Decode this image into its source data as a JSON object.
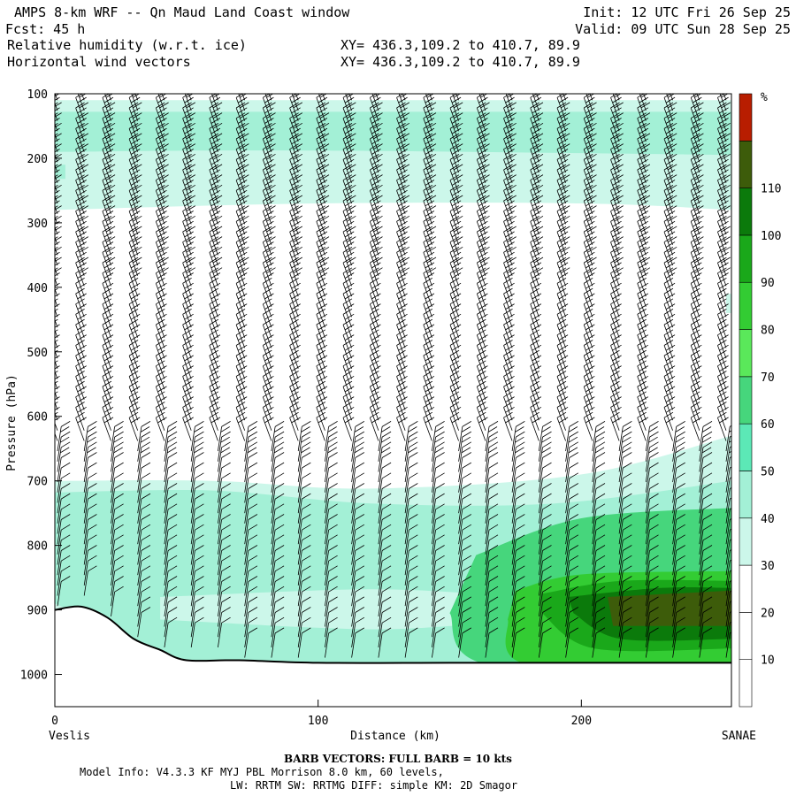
{
  "header": {
    "title": "AMPS 8-km WRF -- Qn Maud Land Coast window",
    "forecast": "Fcst: 45 h",
    "field1": "Relative humidity (w.r.t. ice)",
    "field2": "Horizontal wind vectors",
    "xy1": "XY= 436.3,109.2 to 410.7, 89.9",
    "xy2": "XY= 436.3,109.2 to 410.7, 89.9",
    "init": "Init: 12 UTC Fri 26 Sep 25",
    "valid": "Valid: 09 UTC Sun 28 Sep 25"
  },
  "chart_data": {
    "type": "heatmap",
    "subtype": "vertical cross-section, filled contours of relative humidity with wind barbs",
    "xlabel": "Distance (km)",
    "ylabel": "Pressure (hPa)",
    "xlim": [
      0,
      257
    ],
    "ylim": [
      1050,
      100
    ],
    "x_ticks": [
      0,
      100,
      200
    ],
    "y_ticks": [
      100,
      200,
      300,
      400,
      500,
      600,
      700,
      800,
      900,
      1000
    ],
    "x_endpoint_left": "Veslis",
    "x_endpoint_right": "SANAE",
    "grid": false,
    "colorbar": {
      "unit": "%",
      "ticks": [
        10,
        20,
        30,
        40,
        50,
        60,
        70,
        80,
        90,
        100,
        110
      ],
      "levels": [
        0,
        10,
        20,
        30,
        40,
        50,
        60,
        70,
        80,
        90,
        100,
        110,
        120
      ],
      "colors": [
        "#ffffff",
        "#ffffff",
        "#ffffff",
        "#ccf7ea",
        "#a3f0d6",
        "#5ce8b6",
        "#46d67c",
        "#5ae85a",
        "#33cc33",
        "#1aa81a",
        "#0b7a0b",
        "#3d5c0a",
        "#b81d00"
      ]
    },
    "rh_regions": [
      {
        "rh": 35,
        "top": [
          [
            0,
            110
          ],
          [
            257,
            110
          ]
        ],
        "bottom": [
          [
            257,
            280
          ],
          [
            200,
            270
          ],
          [
            100,
            270
          ],
          [
            0,
            280
          ]
        ]
      },
      {
        "rh": 45,
        "top": [
          [
            0,
            128
          ],
          [
            257,
            128
          ]
        ],
        "bottom": [
          [
            257,
            195
          ],
          [
            100,
            188
          ],
          [
            0,
            190
          ]
        ]
      },
      {
        "rh": 45,
        "top": [
          [
            0,
            210
          ],
          [
            4,
            210
          ]
        ],
        "bottom": [
          [
            4,
            232
          ],
          [
            0,
            232
          ]
        ]
      },
      {
        "rh": 35,
        "top": [
          [
            0,
            700
          ],
          [
            60,
            700
          ],
          [
            120,
            712
          ],
          [
            200,
            690
          ],
          [
            257,
            630
          ]
        ],
        "bottom": [
          [
            257,
            985
          ],
          [
            52,
            985
          ],
          [
            30,
            960
          ],
          [
            0,
            905
          ]
        ]
      },
      {
        "rh": 35,
        "top": [
          [
            257,
            410
          ],
          [
            255,
            410
          ]
        ],
        "bottom": [
          [
            255,
            440
          ],
          [
            257,
            440
          ]
        ]
      },
      {
        "rh": 45,
        "top": [
          [
            0,
            718
          ],
          [
            60,
            715
          ],
          [
            120,
            735
          ],
          [
            190,
            735
          ],
          [
            257,
            700
          ]
        ],
        "bottom": [
          [
            257,
            985
          ],
          [
            52,
            985
          ],
          [
            30,
            950
          ],
          [
            0,
            890
          ]
        ]
      },
      {
        "rh": 35,
        "top": [
          [
            40,
            880
          ],
          [
            120,
            868
          ],
          [
            170,
            878
          ]
        ],
        "bottom": [
          [
            170,
            918
          ],
          [
            120,
            930
          ],
          [
            40,
            915
          ]
        ]
      },
      {
        "rh": 65,
        "top": [
          [
            160,
            815
          ],
          [
            200,
            758
          ],
          [
            257,
            742
          ]
        ],
        "bottom": [
          [
            257,
            985
          ],
          [
            165,
            985
          ],
          [
            150,
            905
          ]
        ]
      },
      {
        "rh": 85,
        "top": [
          [
            175,
            870
          ],
          [
            200,
            845
          ],
          [
            257,
            840
          ]
        ],
        "bottom": [
          [
            257,
            985
          ],
          [
            180,
            985
          ],
          [
            172,
            915
          ]
        ]
      },
      {
        "rh": 95,
        "top": [
          [
            185,
            875
          ],
          [
            215,
            855
          ],
          [
            257,
            855
          ]
        ],
        "bottom": [
          [
            257,
            960
          ],
          [
            205,
            960
          ],
          [
            185,
            905
          ]
        ]
      },
      {
        "rh": 105,
        "top": [
          [
            195,
            880
          ],
          [
            230,
            866
          ],
          [
            257,
            866
          ]
        ],
        "bottom": [
          [
            257,
            945
          ],
          [
            215,
            945
          ],
          [
            197,
            905
          ]
        ]
      },
      {
        "rh": 115,
        "top": [
          [
            210,
            880
          ],
          [
            257,
            870
          ]
        ],
        "bottom": [
          [
            257,
            925
          ],
          [
            212,
            925
          ]
        ]
      }
    ],
    "terrain_surface": [
      [
        0,
        900
      ],
      [
        10,
        895
      ],
      [
        20,
        912
      ],
      [
        30,
        945
      ],
      [
        40,
        962
      ],
      [
        50,
        978
      ],
      [
        70,
        978
      ],
      [
        100,
        982
      ],
      [
        150,
        982
      ],
      [
        200,
        982
      ],
      [
        257,
        982
      ]
    ]
  },
  "footer": {
    "barb_note": "BARB VECTORS: FULL BARB = 10 kts",
    "model_info": "Model Info: V4.3.3 KF MYJ PBL Morrison 8.0 km, 60 levels,",
    "model_info2": "LW: RRTM SW: RRTMG DIFF: simple KM: 2D Smagor"
  }
}
